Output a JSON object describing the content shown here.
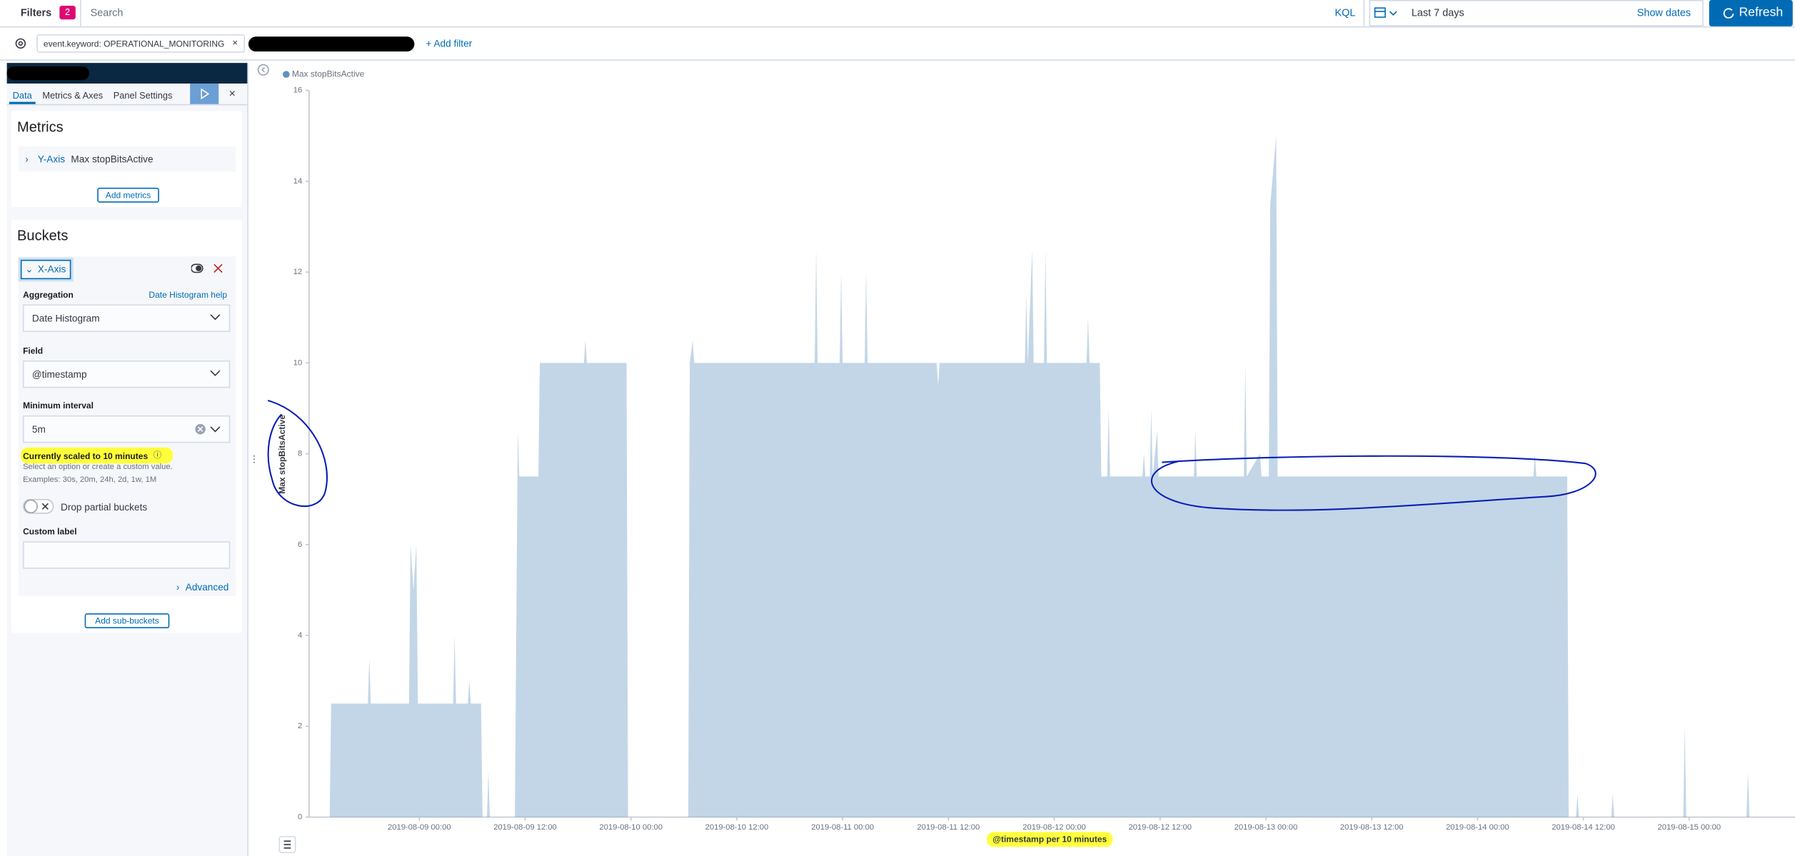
{
  "filter_bar": {
    "label": "Filters",
    "count": 2,
    "placeholder": "Search",
    "language": "KQL",
    "time_range": "Last 7 days",
    "show_dates": "Show dates",
    "refresh": "Refresh"
  },
  "filters": {
    "pill": "event.keyword: OPERATIONAL_MONITORING",
    "add": "+ Add filter"
  },
  "sidebar": {
    "tabs": [
      "Data",
      "Metrics & Axes",
      "Panel Settings"
    ],
    "metrics": {
      "title": "Metrics",
      "axis": "Y-Axis",
      "metric": "Max stopBitsActive",
      "add": "Add metrics"
    },
    "buckets": {
      "title": "Buckets",
      "axis": "X-Axis",
      "aggregation_label": "Aggregation",
      "help": "Date Histogram help",
      "aggregation": "Date Histogram",
      "field_label": "Field",
      "field": "@timestamp",
      "interval_label": "Minimum interval",
      "interval": "5m",
      "scaled_note": "Currently scaled to 10 minutes",
      "hint": "Select an option or create a custom value.",
      "examples": "Examples: 30s, 20m, 24h, 2d, 1w, 1M",
      "drop_partial": "Drop partial buckets",
      "custom_label": "Custom label",
      "advanced": "Advanced",
      "add": "Add sub-buckets"
    }
  },
  "chart_data": {
    "type": "area",
    "y_label": "Max stopBitsActive",
    "x_label": "@timestamp per 10 minutes",
    "xlim": [
      "2019-08-08 11:30",
      "2019-08-15 12:00"
    ],
    "xticks": [
      "2019-08-09 00:00",
      "2019-08-09 12:00",
      "2019-08-10 00:00",
      "2019-08-10 12:00",
      "2019-08-11 00:00",
      "2019-08-11 12:00",
      "2019-08-12 00:00",
      "2019-08-12 12:00",
      "2019-08-13 00:00",
      "2019-08-13 12:00",
      "2019-08-14 00:00",
      "2019-08-14 12:00",
      "2019-08-15 00:00"
    ],
    "ylim": [
      0,
      16
    ],
    "yticks": [
      0,
      2,
      4,
      6,
      8,
      10,
      12,
      14,
      16
    ],
    "x": [
      "2019-08-08 13:50",
      "2019-08-08 14:00",
      "2019-08-08 18:10",
      "2019-08-08 18:20",
      "2019-08-08 18:30",
      "2019-08-08 22:50",
      "2019-08-08 23:00",
      "2019-08-08 23:20",
      "2019-08-08 23:40",
      "2019-08-08 23:50",
      "2019-08-09 03:50",
      "2019-08-09 04:00",
      "2019-08-09 04:10",
      "2019-08-09 05:30",
      "2019-08-09 05:40",
      "2019-08-09 05:50",
      "2019-08-09 07:00",
      "2019-08-09 07:10",
      "2019-08-09 07:40",
      "2019-08-09 07:50",
      "2019-08-09 08:00",
      "2019-08-09 10:50",
      "2019-08-09 11:10",
      "2019-08-09 11:20",
      "2019-08-09 13:30",
      "2019-08-09 13:40",
      "2019-08-09 18:40",
      "2019-08-09 18:50",
      "2019-08-09 19:00",
      "2019-08-09 23:30",
      "2019-08-09 23:40",
      "2019-08-10 06:30",
      "2019-08-10 06:40",
      "2019-08-10 07:00",
      "2019-08-10 07:10",
      "2019-08-10 20:50",
      "2019-08-10 21:00",
      "2019-08-10 21:10",
      "2019-08-10 23:40",
      "2019-08-10 23:50",
      "2019-08-11 00:00",
      "2019-08-11 02:30",
      "2019-08-11 02:40",
      "2019-08-11 02:50",
      "2019-08-11 10:40",
      "2019-08-11 10:50",
      "2019-08-11 11:00",
      "2019-08-11 20:40",
      "2019-08-11 20:50",
      "2019-08-11 21:00",
      "2019-08-11 21:30",
      "2019-08-11 21:40",
      "2019-08-11 22:50",
      "2019-08-11 23:00",
      "2019-08-11 23:10",
      "2019-08-12 03:40",
      "2019-08-12 03:50",
      "2019-08-12 04:00",
      "2019-08-12 05:10",
      "2019-08-12 05:20",
      "2019-08-12 06:00",
      "2019-08-12 06:10",
      "2019-08-12 06:20",
      "2019-08-12 10:00",
      "2019-08-12 10:10",
      "2019-08-12 10:20",
      "2019-08-12 10:50",
      "2019-08-12 11:00",
      "2019-08-12 11:10",
      "2019-08-12 11:40",
      "2019-08-12 11:50",
      "2019-08-12 15:50",
      "2019-08-12 16:00",
      "2019-08-12 16:10",
      "2019-08-12 21:30",
      "2019-08-12 21:40",
      "2019-08-12 21:50",
      "2019-08-12 23:20",
      "2019-08-12 23:30",
      "2019-08-13 00:20",
      "2019-08-13 00:30",
      "2019-08-13 01:10",
      "2019-08-13 01:20",
      "2019-08-14 06:20",
      "2019-08-14 06:30",
      "2019-08-14 06:40",
      "2019-08-14 10:10",
      "2019-08-14 10:20",
      "2019-08-14 11:10",
      "2019-08-14 11:20",
      "2019-08-14 11:30",
      "2019-08-14 15:10",
      "2019-08-14 15:20",
      "2019-08-14 15:30",
      "2019-08-14 23:20",
      "2019-08-14 23:30",
      "2019-08-14 23:40",
      "2019-08-15 06:30",
      "2019-08-15 06:40",
      "2019-08-15 06:50"
    ],
    "series": [
      {
        "name": "Max stopBitsActive",
        "color": "#6092c0",
        "values": [
          0,
          2.5,
          2.5,
          3.5,
          2.5,
          2.5,
          6,
          5,
          6,
          2.5,
          2.5,
          4,
          2.5,
          2.5,
          3,
          2.5,
          2.5,
          0,
          0,
          1,
          0,
          0,
          8.5,
          7.5,
          7.5,
          10,
          10,
          10.5,
          10,
          10,
          0,
          0,
          10,
          10.5,
          10,
          10,
          12.5,
          10,
          10,
          12,
          10,
          10,
          12,
          10,
          10,
          9.5,
          10,
          10,
          11.5,
          10,
          12.5,
          10,
          10,
          12.5,
          10,
          10,
          11,
          10,
          10,
          7.5,
          7.5,
          9,
          7.5,
          7.5,
          8,
          7.5,
          7.5,
          9,
          7.5,
          8.5,
          7.5,
          7.5,
          8.5,
          7.5,
          7.5,
          10,
          7.5,
          8,
          7.5,
          7.5,
          13.5,
          15,
          7.5,
          7.5,
          8,
          7.5,
          7.5,
          0,
          0,
          0.5,
          0,
          0,
          0.5,
          0,
          0,
          2,
          0,
          0,
          1,
          0
        ]
      }
    ]
  }
}
